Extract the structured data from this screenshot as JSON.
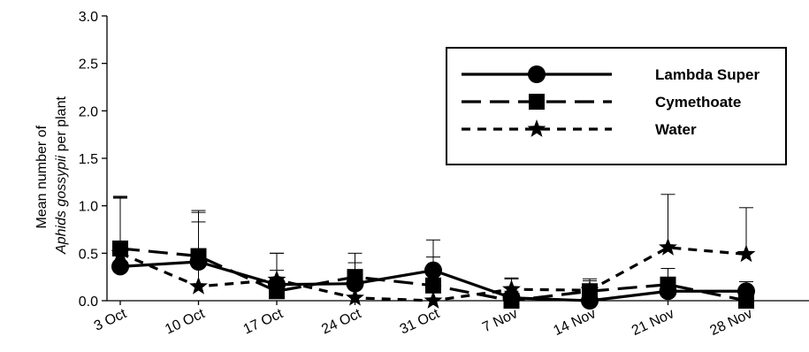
{
  "chart_data": {
    "type": "line",
    "ylabel_line1": "Mean number of",
    "ylabel_line2_italic": "Aphids gossypii",
    "ylabel_line2_rest": " per plant",
    "xlabel": "",
    "categories": [
      "3 Oct",
      "10 Oct",
      "17 Oct",
      "24 Oct",
      "31 Oct",
      "7 Nov",
      "14 Nov",
      "21 Nov",
      "28 Nov"
    ],
    "ylim": [
      0,
      3.0
    ],
    "yticks": [
      "0.0",
      "0.5",
      "1.0",
      "1.5",
      "2.0",
      "2.5",
      "3.0"
    ],
    "grid": false,
    "legend_position": "top-right",
    "series": [
      {
        "name": "Lambda Super",
        "marker": "circle",
        "dash": "solid",
        "values": [
          0.36,
          0.41,
          0.17,
          0.18,
          0.32,
          0.03,
          0.0,
          0.1,
          0.1
        ],
        "error": [
          0.72,
          0.42,
          0.33,
          0.22,
          0.32,
          0.2,
          0.1,
          0.24,
          0.1
        ]
      },
      {
        "name": "Cymethoate",
        "marker": "square",
        "dash": "long-dash",
        "values": [
          0.55,
          0.47,
          0.1,
          0.25,
          0.16,
          0.0,
          0.1,
          0.17,
          0.0
        ],
        "error": [
          0.54,
          0.46,
          0.4,
          0.25,
          0.3,
          0.1,
          0.13,
          0.17,
          0.0
        ]
      },
      {
        "name": "Water",
        "marker": "star",
        "dash": "short-dash",
        "values": [
          0.5,
          0.15,
          0.22,
          0.03,
          0.0,
          0.12,
          0.11,
          0.56,
          0.49
        ],
        "error": [
          0.6,
          0.8,
          0.1,
          0.1,
          0.1,
          0.12,
          0.1,
          0.56,
          0.49
        ]
      }
    ]
  }
}
